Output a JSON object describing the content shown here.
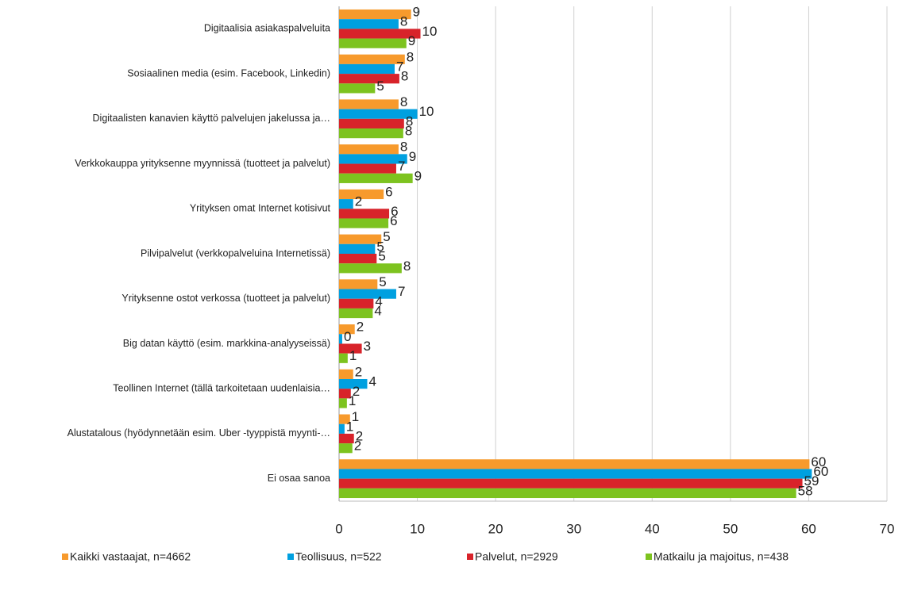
{
  "chart_data": {
    "type": "hbar",
    "categories": [
      "Digitaalisia asiakaspalveluita",
      "Sosiaalinen media (esim. Facebook, Linkedin)",
      "Digitaalisten kanavien käyttö palvelujen jakelussa ja…",
      "Verkkokauppa yrityksenne myynnissä (tuotteet ja palvelut)",
      "Yrityksen omat Internet kotisivut",
      "Pilvipalvelut  (verkkopalveluina Internetissä)",
      "Yrityksenne ostot verkossa (tuotteet ja palvelut)",
      "Big datan käyttö (esim. markkina-analyyseissä)",
      "Teollinen Internet (tällä tarkoitetaan uudenlaisia…",
      "Alustatalous (hyödynnetään esim. Uber -tyyppistä myynti-…",
      "Ei osaa sanoa"
    ],
    "series": [
      {
        "name": "Kaikki vastaajat, n=4662",
        "color": "#f79a2c",
        "values": [
          9.2,
          8.4,
          7.6,
          7.6,
          5.7,
          5.4,
          4.9,
          2.0,
          1.8,
          1.4,
          60.1
        ],
        "value_labels": [
          "9",
          "8",
          "8",
          "8",
          "6",
          "5",
          "5",
          "2",
          "2",
          "1",
          "60"
        ]
      },
      {
        "name": "Teollisuus, n=522",
        "color": "#00a0e0",
        "values": [
          7.6,
          7.1,
          10.0,
          8.7,
          1.8,
          4.6,
          7.3,
          0.4,
          3.6,
          0.7,
          60.4
        ],
        "value_labels": [
          "8",
          "7",
          "10",
          "9",
          "2",
          "5",
          "7",
          "0",
          "4",
          "1",
          "60"
        ]
      },
      {
        "name": "Palvelut, n=2929",
        "color": "#d8232a",
        "values": [
          10.4,
          7.7,
          8.3,
          7.3,
          6.4,
          4.8,
          4.4,
          2.9,
          1.5,
          1.9,
          59.2
        ],
        "value_labels": [
          "10",
          "8",
          "8",
          "7",
          "6",
          "5",
          "4",
          "3",
          "2",
          "2",
          "59"
        ]
      },
      {
        "name": "Matkailu ja majoitus, n=438",
        "color": "#7dc31f",
        "values": [
          8.6,
          4.6,
          8.2,
          9.4,
          6.3,
          8.0,
          4.3,
          1.1,
          1.0,
          1.7,
          58.4
        ],
        "value_labels": [
          "9",
          "5",
          "8",
          "9",
          "6",
          "8",
          "4",
          "1",
          "1",
          "2",
          "58"
        ]
      }
    ],
    "xlim": [
      0,
      70
    ],
    "xticks": [
      0,
      10,
      20,
      30,
      40,
      50,
      60,
      70
    ],
    "grid": true,
    "legend": "bottom"
  }
}
